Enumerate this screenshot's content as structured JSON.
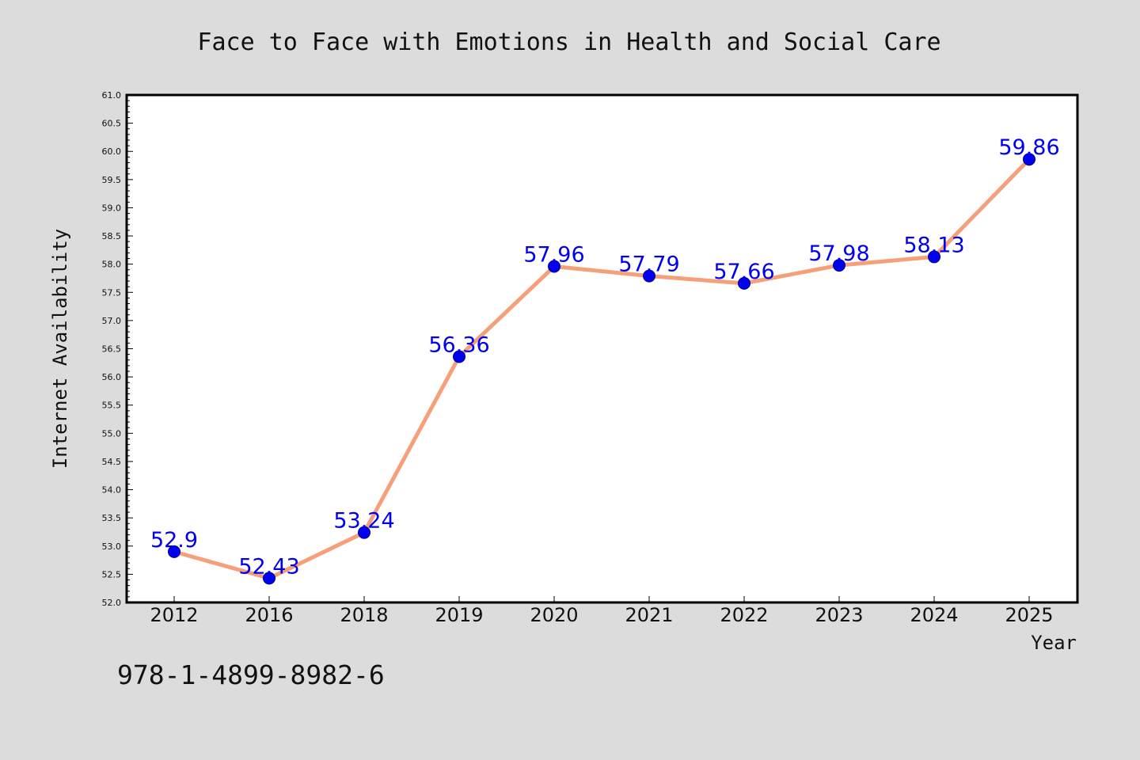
{
  "chart_data": {
    "type": "line",
    "title": "Face to Face with Emotions in Health and Social Care",
    "xlabel": "Year",
    "ylabel": "Internet Availability",
    "categories": [
      "2012",
      "2016",
      "2018",
      "2019",
      "2020",
      "2021",
      "2022",
      "2023",
      "2024",
      "2025"
    ],
    "values": [
      52.9,
      52.43,
      53.24,
      56.36,
      57.96,
      57.79,
      57.66,
      57.98,
      58.13,
      59.86
    ],
    "data_labels": [
      "52.9",
      "52.43",
      "53.24",
      "56.36",
      "57.96",
      "57.79",
      "57.66",
      "57.98",
      "58.13",
      "59.86"
    ],
    "ylim": [
      52.0,
      61.0
    ],
    "yticks": [
      "52.0",
      "52.5",
      "53.0",
      "53.5",
      "54.0",
      "54.5",
      "55.0",
      "55.5",
      "56.0",
      "56.5",
      "57.0",
      "57.5",
      "58.0",
      "58.5",
      "59.0",
      "59.5",
      "60.0",
      "60.5",
      "61.0"
    ],
    "grid": false,
    "line_color": "#f5a07a",
    "marker_color": "#0000ee",
    "label_color": "#0000ee",
    "background": "#dcdcdc",
    "plot_background": "#ffffff"
  },
  "footer": {
    "isbn": "978-1-4899-8982-6"
  }
}
